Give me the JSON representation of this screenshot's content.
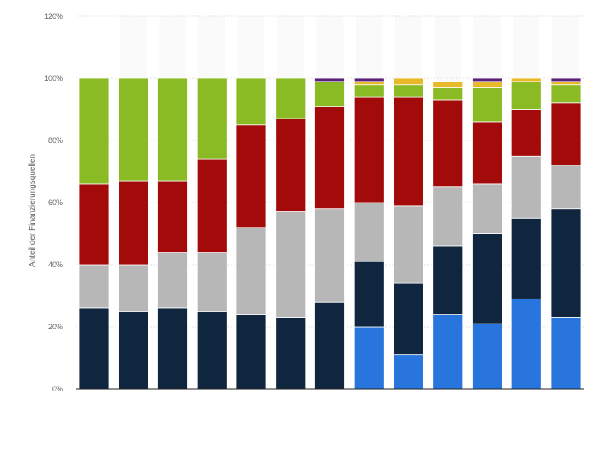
{
  "chart_data": {
    "type": "bar",
    "stacked": true,
    "ylabel": "Anteil der Finanzierungsquellen",
    "ylim": [
      0,
      120
    ],
    "y_ticks": [
      0,
      20,
      40,
      60,
      80,
      100,
      120
    ],
    "y_tick_labels": [
      "0%",
      "20%",
      "40%",
      "60%",
      "80%",
      "100%",
      "120%"
    ],
    "grid": true,
    "legend": "none",
    "categories": [
      "",
      "",
      "",
      "",
      "",
      "",
      "",
      "",
      "",
      "",
      "",
      "",
      ""
    ],
    "series": [
      {
        "color": "#2876dd",
        "values": [
          0,
          0,
          0,
          0,
          0,
          0,
          0,
          20,
          11,
          24,
          21,
          29,
          23
        ]
      },
      {
        "color": "#10263e",
        "values": [
          26,
          25,
          26,
          25,
          24,
          23,
          28,
          21,
          23,
          22,
          29,
          26,
          35
        ]
      },
      {
        "color": "#b7b7b7",
        "values": [
          14,
          15,
          18,
          19,
          28,
          34,
          30,
          19,
          25,
          19,
          16,
          20,
          14
        ]
      },
      {
        "color": "#a30a0a",
        "values": [
          26,
          27,
          23,
          30,
          33,
          30,
          33,
          34,
          35,
          28,
          20,
          15,
          20
        ]
      },
      {
        "color": "#8aba24",
        "values": [
          34,
          33,
          33,
          26,
          15,
          13,
          8,
          4,
          4,
          4,
          11,
          9,
          6
        ]
      },
      {
        "color": "#e8ba29",
        "values": [
          0,
          0,
          0,
          0,
          0,
          0,
          0,
          1,
          2,
          2,
          2,
          1,
          1
        ]
      },
      {
        "color": "#5a2278",
        "values": [
          0,
          0,
          0,
          0,
          0,
          0,
          1,
          1,
          0,
          0,
          1,
          0,
          1
        ]
      }
    ]
  }
}
